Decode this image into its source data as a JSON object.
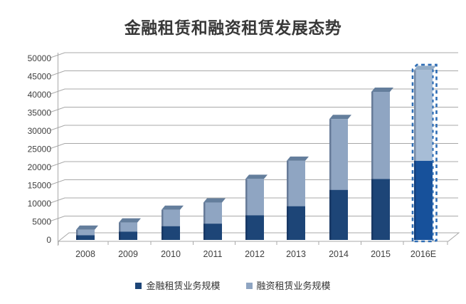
{
  "chart_data": {
    "type": "bar",
    "stacked": true,
    "title": "金融租赁和融资租赁发展态势",
    "categories": [
      "2008",
      "2009",
      "2010",
      "2011",
      "2012",
      "2013",
      "2014",
      "2015",
      "2016E"
    ],
    "series": [
      {
        "name": "金融租赁业务规模",
        "color": "#1D4577",
        "values": [
          500,
          1500,
          3000,
          3700,
          6000,
          8500,
          13000,
          16000,
          21000
        ]
      },
      {
        "name": "融资租赁业务规模",
        "color": "#8FA5C2",
        "values": [
          1500,
          2500,
          4500,
          5800,
          10000,
          12500,
          19500,
          24000,
          25000
        ]
      }
    ],
    "totals": [
      2000,
      4000,
      7500,
      9500,
      16000,
      21000,
      32500,
      40000,
      46000
    ],
    "ylim": [
      0,
      50000
    ],
    "ytick_step": 5000,
    "ytick_labels": [
      "0",
      "5000",
      "10000",
      "15000",
      "20000",
      "25000",
      "30000",
      "35000",
      "40000",
      "45000",
      "50000"
    ],
    "xlabel": "",
    "ylabel": "",
    "grid": true,
    "legend_position": "bottom",
    "style_3d": true,
    "highlight": {
      "category": "2016E",
      "note": "forecast bar drawn with dashed outline",
      "fill_dark": "#17519B",
      "fill_light": "#A7BDD6",
      "cap_color": "#93ACC6",
      "outline_color": "#2E6DB5",
      "outline_style": "dashed"
    },
    "cap_color": "#647E9C",
    "gridline_color": "#A8A8A8",
    "axis_label_color": "#3F3F3F"
  }
}
